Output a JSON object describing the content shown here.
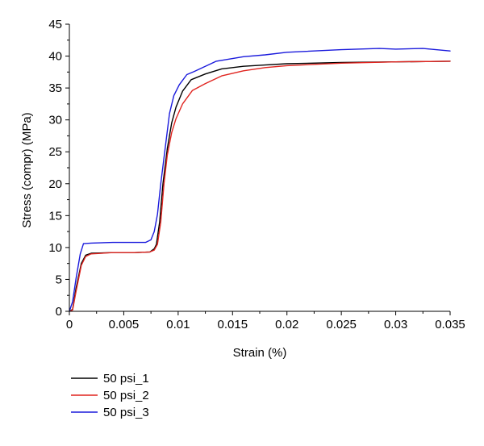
{
  "chart_data": {
    "type": "line",
    "title": "",
    "xlabel": "Strain (%)",
    "ylabel": "Stress (compr) (MPa)",
    "xlim": [
      0,
      0.035
    ],
    "ylim": [
      0,
      45
    ],
    "xticks": [
      0,
      0.005,
      0.01,
      0.015,
      0.02,
      0.025,
      0.03,
      0.035
    ],
    "xtick_labels": [
      "0",
      "0.005",
      "0.01",
      "0.015",
      "0.02",
      "0.025",
      "0.03",
      "0.035"
    ],
    "yticks": [
      0,
      5,
      10,
      15,
      20,
      25,
      30,
      35,
      40,
      45
    ],
    "ytick_labels": [
      "0",
      "5",
      "10",
      "15",
      "20",
      "25",
      "30",
      "35",
      "40",
      "45"
    ],
    "grid": false,
    "legend_position": "bottom-left, below plot",
    "series": [
      {
        "name": "50 psi_1",
        "color": "#000000",
        "x": [
          0,
          0.0003,
          0.0006,
          0.0011,
          0.0015,
          0.002,
          0.004,
          0.006,
          0.0074,
          0.0078,
          0.008,
          0.0083,
          0.0086,
          0.009,
          0.0094,
          0.0098,
          0.0104,
          0.0112,
          0.0125,
          0.014,
          0.016,
          0.018,
          0.02,
          0.025,
          0.03,
          0.035
        ],
        "y": [
          0,
          0.3,
          3.5,
          7.5,
          8.8,
          9.1,
          9.2,
          9.2,
          9.3,
          9.8,
          10.5,
          14,
          20,
          25.5,
          29.5,
          32.0,
          34.5,
          36.3,
          37.2,
          38.0,
          38.4,
          38.6,
          38.8,
          39.0,
          39.1,
          39.2
        ]
      },
      {
        "name": "50 psi_2",
        "color": "#e0241f",
        "x": [
          0,
          0.0003,
          0.0006,
          0.0011,
          0.0015,
          0.002,
          0.004,
          0.006,
          0.0074,
          0.0078,
          0.0081,
          0.0084,
          0.0087,
          0.009,
          0.0094,
          0.0098,
          0.0104,
          0.0113,
          0.0125,
          0.014,
          0.016,
          0.018,
          0.02,
          0.025,
          0.03,
          0.035
        ],
        "y": [
          0,
          0.2,
          3.0,
          7.2,
          8.6,
          9.0,
          9.2,
          9.2,
          9.3,
          9.6,
          10.5,
          14,
          20,
          24.5,
          28.0,
          30.2,
          32.5,
          34.6,
          35.7,
          36.9,
          37.7,
          38.2,
          38.5,
          38.9,
          39.1,
          39.2
        ]
      },
      {
        "name": "50 psi_3",
        "color": "#1a1adc",
        "x": [
          0,
          0.0003,
          0.0006,
          0.001,
          0.0013,
          0.002,
          0.004,
          0.006,
          0.007,
          0.0075,
          0.0078,
          0.0081,
          0.0084,
          0.0088,
          0.0092,
          0.0096,
          0.0101,
          0.0108,
          0.0115,
          0.0135,
          0.016,
          0.018,
          0.02,
          0.025,
          0.0285,
          0.03,
          0.0325,
          0.035
        ],
        "y": [
          0,
          1.5,
          5.0,
          9.0,
          10.6,
          10.7,
          10.8,
          10.8,
          10.8,
          11.2,
          12.5,
          15.2,
          20,
          25.5,
          31.0,
          33.8,
          35.5,
          37.1,
          37.6,
          39.2,
          39.9,
          40.2,
          40.6,
          41.0,
          41.2,
          41.1,
          41.2,
          40.8
        ]
      }
    ]
  }
}
